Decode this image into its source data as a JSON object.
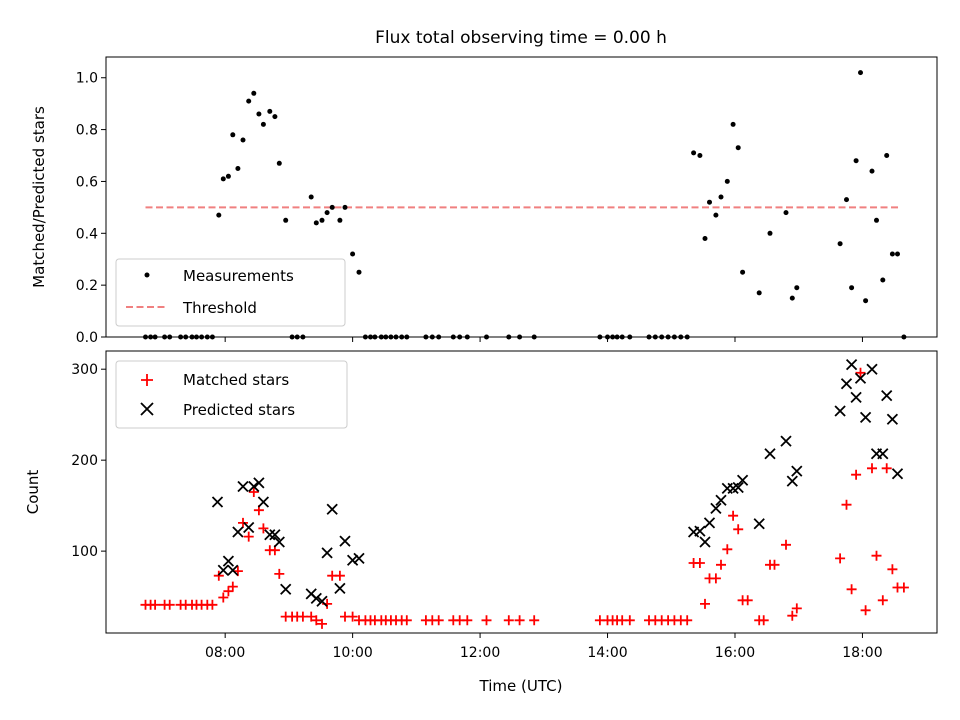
{
  "chart_data": [
    {
      "type": "scatter",
      "title": "Flux total observing time = 0.00 h",
      "xlabel": "",
      "ylabel": "Matched/Predicted stars",
      "x_unit": "hours (UTC)",
      "xlim": [
        6.13,
        19.17
      ],
      "ylim": [
        0.0,
        1.08
      ],
      "yticks": [
        "0.0",
        "0.2",
        "0.4",
        "0.6",
        "0.8",
        "1.0"
      ],
      "grid": false,
      "legend": {
        "position": "lower-left",
        "entries": [
          "Measurements",
          "Threshold"
        ]
      },
      "colors": {
        "measurements": "#000000",
        "threshold": "#f08080"
      },
      "threshold": {
        "name": "Threshold",
        "y": 0.5,
        "x_range": [
          6.75,
          18.6
        ]
      },
      "series": [
        {
          "name": "Measurements",
          "points": [
            [
              6.75,
              0
            ],
            [
              6.83,
              0
            ],
            [
              6.9,
              0
            ],
            [
              7.05,
              0
            ],
            [
              7.13,
              0
            ],
            [
              7.3,
              0
            ],
            [
              7.38,
              0
            ],
            [
              7.48,
              0
            ],
            [
              7.55,
              0
            ],
            [
              7.63,
              0
            ],
            [
              7.72,
              0
            ],
            [
              7.8,
              0
            ],
            [
              7.9,
              0.47
            ],
            [
              7.97,
              0.61
            ],
            [
              8.05,
              0.62
            ],
            [
              8.12,
              0.78
            ],
            [
              8.2,
              0.65
            ],
            [
              8.28,
              0.76
            ],
            [
              8.37,
              0.91
            ],
            [
              8.45,
              0.94
            ],
            [
              8.53,
              0.86
            ],
            [
              8.6,
              0.82
            ],
            [
              8.7,
              0.87
            ],
            [
              8.78,
              0.85
            ],
            [
              8.85,
              0.67
            ],
            [
              8.95,
              0.45
            ],
            [
              9.05,
              0
            ],
            [
              9.13,
              0
            ],
            [
              9.22,
              0
            ],
            [
              9.35,
              0.54
            ],
            [
              9.43,
              0.44
            ],
            [
              9.52,
              0.45
            ],
            [
              9.6,
              0.48
            ],
            [
              9.68,
              0.5
            ],
            [
              9.8,
              0.45
            ],
            [
              9.88,
              0.5
            ],
            [
              10.0,
              0.32
            ],
            [
              10.1,
              0.25
            ],
            [
              10.2,
              0
            ],
            [
              10.28,
              0
            ],
            [
              10.35,
              0
            ],
            [
              10.45,
              0
            ],
            [
              10.52,
              0
            ],
            [
              10.6,
              0
            ],
            [
              10.68,
              0
            ],
            [
              10.77,
              0
            ],
            [
              10.85,
              0
            ],
            [
              11.15,
              0
            ],
            [
              11.25,
              0
            ],
            [
              11.35,
              0
            ],
            [
              11.58,
              0
            ],
            [
              11.68,
              0
            ],
            [
              11.8,
              0
            ],
            [
              12.1,
              0
            ],
            [
              12.45,
              0
            ],
            [
              12.62,
              0
            ],
            [
              12.85,
              0
            ],
            [
              13.88,
              0
            ],
            [
              14.0,
              0
            ],
            [
              14.08,
              0
            ],
            [
              14.15,
              0
            ],
            [
              14.23,
              0
            ],
            [
              14.35,
              0
            ],
            [
              14.65,
              0
            ],
            [
              14.75,
              0
            ],
            [
              14.85,
              0
            ],
            [
              14.95,
              0
            ],
            [
              15.05,
              0
            ],
            [
              15.15,
              0
            ],
            [
              15.25,
              0
            ],
            [
              15.35,
              0.71
            ],
            [
              15.45,
              0.7
            ],
            [
              15.53,
              0.38
            ],
            [
              15.6,
              0.52
            ],
            [
              15.7,
              0.47
            ],
            [
              15.78,
              0.54
            ],
            [
              15.88,
              0.6
            ],
            [
              15.97,
              0.82
            ],
            [
              16.05,
              0.73
            ],
            [
              16.12,
              0.25
            ],
            [
              16.38,
              0.17
            ],
            [
              16.55,
              0.4
            ],
            [
              16.8,
              0.48
            ],
            [
              16.9,
              0.15
            ],
            [
              16.97,
              0.19
            ],
            [
              17.65,
              0.36
            ],
            [
              17.75,
              0.53
            ],
            [
              17.83,
              0.19
            ],
            [
              17.9,
              0.68
            ],
            [
              17.97,
              1.02
            ],
            [
              18.05,
              0.14
            ],
            [
              18.15,
              0.64
            ],
            [
              18.22,
              0.45
            ],
            [
              18.32,
              0.22
            ],
            [
              18.38,
              0.7
            ],
            [
              18.47,
              0.32
            ],
            [
              18.55,
              0.32
            ],
            [
              18.65,
              0
            ]
          ]
        }
      ]
    },
    {
      "type": "scatter",
      "title": "",
      "xlabel": "Time (UTC)",
      "ylabel": "Count",
      "x_unit": "hours (UTC)",
      "xlim": [
        6.13,
        19.17
      ],
      "ylim": [
        10,
        320
      ],
      "xticks": [
        {
          "value": 8,
          "label": "08:00"
        },
        {
          "value": 10,
          "label": "10:00"
        },
        {
          "value": 12,
          "label": "12:00"
        },
        {
          "value": 14,
          "label": "14:00"
        },
        {
          "value": 16,
          "label": "16:00"
        },
        {
          "value": 18,
          "label": "18:00"
        }
      ],
      "yticks": [
        {
          "value": 100,
          "label": "100"
        },
        {
          "value": 200,
          "label": "200"
        },
        {
          "value": 300,
          "label": "300"
        }
      ],
      "grid": false,
      "legend": {
        "position": "upper-left",
        "entries": [
          "Matched stars",
          "Predicted stars"
        ]
      },
      "colors": {
        "matched": "#ff0000",
        "predicted": "#000000"
      },
      "series": [
        {
          "name": "Matched stars",
          "marker": "plus",
          "points": [
            [
              6.75,
              41
            ],
            [
              6.83,
              41
            ],
            [
              6.9,
              41
            ],
            [
              7.05,
              41
            ],
            [
              7.13,
              41
            ],
            [
              7.3,
              41
            ],
            [
              7.38,
              41
            ],
            [
              7.48,
              41
            ],
            [
              7.55,
              41
            ],
            [
              7.63,
              41
            ],
            [
              7.72,
              41
            ],
            [
              7.8,
              41
            ],
            [
              7.9,
              73
            ],
            [
              7.97,
              49
            ],
            [
              8.05,
              56
            ],
            [
              8.12,
              61
            ],
            [
              8.2,
              78
            ],
            [
              8.28,
              131
            ],
            [
              8.37,
              116
            ],
            [
              8.45,
              165
            ],
            [
              8.53,
              145
            ],
            [
              8.6,
              125
            ],
            [
              8.7,
              101
            ],
            [
              8.78,
              101
            ],
            [
              8.85,
              75
            ],
            [
              8.95,
              28
            ],
            [
              9.05,
              28
            ],
            [
              9.13,
              28
            ],
            [
              9.22,
              28
            ],
            [
              9.35,
              28
            ],
            [
              9.43,
              24
            ],
            [
              9.52,
              20
            ],
            [
              9.6,
              42
            ],
            [
              9.68,
              73
            ],
            [
              9.8,
              73
            ],
            [
              9.88,
              28
            ],
            [
              10.0,
              28
            ],
            [
              10.1,
              24
            ],
            [
              10.2,
              24
            ],
            [
              10.28,
              24
            ],
            [
              10.35,
              24
            ],
            [
              10.45,
              24
            ],
            [
              10.52,
              24
            ],
            [
              10.6,
              24
            ],
            [
              10.68,
              24
            ],
            [
              10.77,
              24
            ],
            [
              10.85,
              24
            ],
            [
              11.15,
              24
            ],
            [
              11.25,
              24
            ],
            [
              11.35,
              24
            ],
            [
              11.58,
              24
            ],
            [
              11.68,
              24
            ],
            [
              11.8,
              24
            ],
            [
              12.1,
              24
            ],
            [
              12.45,
              24
            ],
            [
              12.62,
              24
            ],
            [
              12.85,
              24
            ],
            [
              13.88,
              24
            ],
            [
              14.0,
              24
            ],
            [
              14.08,
              24
            ],
            [
              14.15,
              24
            ],
            [
              14.23,
              24
            ],
            [
              14.35,
              24
            ],
            [
              14.65,
              24
            ],
            [
              14.75,
              24
            ],
            [
              14.85,
              24
            ],
            [
              14.95,
              24
            ],
            [
              15.05,
              24
            ],
            [
              15.15,
              24
            ],
            [
              15.25,
              24
            ],
            [
              15.35,
              87
            ],
            [
              15.45,
              87
            ],
            [
              15.53,
              42
            ],
            [
              15.6,
              70
            ],
            [
              15.7,
              70
            ],
            [
              15.78,
              85
            ],
            [
              15.88,
              102
            ],
            [
              15.97,
              139
            ],
            [
              16.05,
              124
            ],
            [
              16.12,
              46
            ],
            [
              16.2,
              46
            ],
            [
              16.38,
              24
            ],
            [
              16.45,
              24
            ],
            [
              16.55,
              85
            ],
            [
              16.62,
              85
            ],
            [
              16.8,
              107
            ],
            [
              16.9,
              29
            ],
            [
              16.97,
              37
            ],
            [
              17.65,
              92
            ],
            [
              17.75,
              151
            ],
            [
              17.83,
              58
            ],
            [
              17.9,
              184
            ],
            [
              17.97,
              296
            ],
            [
              18.05,
              35
            ],
            [
              18.15,
              191
            ],
            [
              18.22,
              95
            ],
            [
              18.32,
              46
            ],
            [
              18.38,
              191
            ],
            [
              18.47,
              80
            ],
            [
              18.55,
              60
            ],
            [
              18.65,
              60
            ]
          ]
        },
        {
          "name": "Predicted stars",
          "marker": "x",
          "points": [
            [
              7.88,
              154
            ],
            [
              7.97,
              79
            ],
            [
              8.05,
              89
            ],
            [
              8.12,
              79
            ],
            [
              8.2,
              121
            ],
            [
              8.28,
              171
            ],
            [
              8.37,
              126
            ],
            [
              8.45,
              171
            ],
            [
              8.53,
              175
            ],
            [
              8.6,
              154
            ],
            [
              8.7,
              118
            ],
            [
              8.78,
              118
            ],
            [
              8.85,
              110
            ],
            [
              8.95,
              58
            ],
            [
              9.35,
              53
            ],
            [
              9.43,
              48
            ],
            [
              9.52,
              45
            ],
            [
              9.6,
              98
            ],
            [
              9.68,
              146
            ],
            [
              9.8,
              59
            ],
            [
              9.88,
              111
            ],
            [
              10.0,
              90
            ],
            [
              10.1,
              92
            ],
            [
              15.35,
              121
            ],
            [
              15.45,
              122
            ],
            [
              15.53,
              110
            ],
            [
              15.6,
              131
            ],
            [
              15.7,
              147
            ],
            [
              15.78,
              156
            ],
            [
              15.88,
              169
            ],
            [
              15.97,
              169
            ],
            [
              16.05,
              170
            ],
            [
              16.12,
              178
            ],
            [
              16.38,
              130
            ],
            [
              16.55,
              207
            ],
            [
              16.8,
              221
            ],
            [
              16.9,
              177
            ],
            [
              16.97,
              188
            ],
            [
              17.65,
              254
            ],
            [
              17.75,
              284
            ],
            [
              17.83,
              305
            ],
            [
              17.9,
              269
            ],
            [
              17.97,
              290
            ],
            [
              18.05,
              247
            ],
            [
              18.15,
              300
            ],
            [
              18.22,
              207
            ],
            [
              18.32,
              207
            ],
            [
              18.38,
              271
            ],
            [
              18.47,
              245
            ],
            [
              18.55,
              185
            ]
          ]
        }
      ]
    }
  ]
}
